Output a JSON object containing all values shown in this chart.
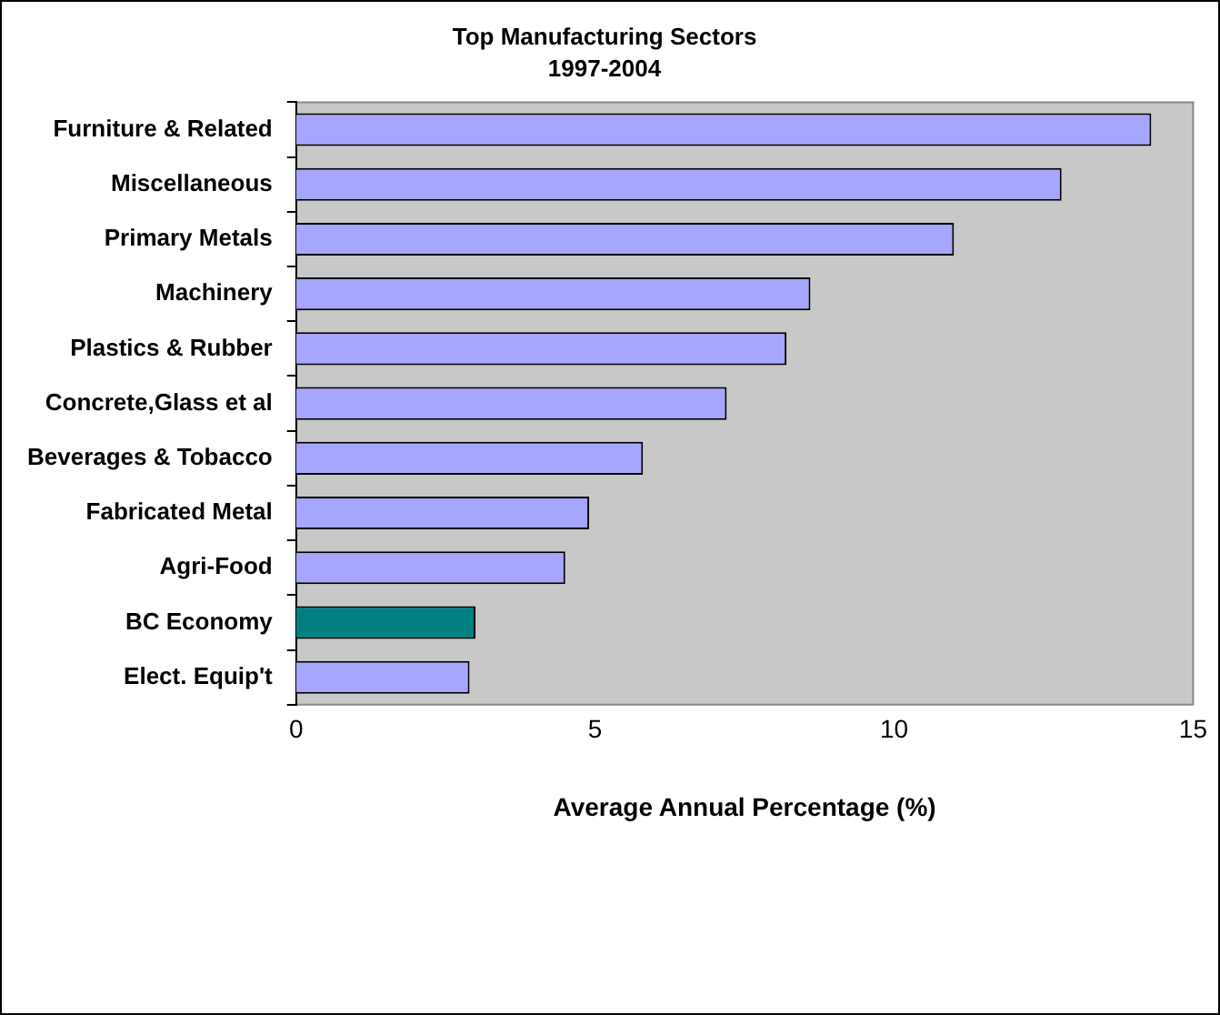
{
  "chart_data": {
    "type": "bar",
    "orientation": "horizontal",
    "title": "Top Manufacturing Sectors",
    "subtitle": "1997-2004",
    "xlabel": "Average Annual Percentage (%)",
    "categories": [
      "Furniture & Related",
      "Miscellaneous",
      "Primary Metals",
      "Machinery",
      "Plastics & Rubber",
      "Concrete,Glass et al",
      "Beverages & Tobacco",
      "Fabricated Metal",
      "Agri-Food",
      "BC Economy",
      "Elect. Equip't"
    ],
    "values": [
      14.3,
      12.8,
      11.0,
      8.6,
      8.2,
      7.2,
      5.8,
      4.9,
      4.5,
      3.0,
      2.9
    ],
    "colors": [
      "#a6a6ff",
      "#a6a6ff",
      "#a6a6ff",
      "#a6a6ff",
      "#a6a6ff",
      "#a6a6ff",
      "#a6a6ff",
      "#a6a6ff",
      "#a6a6ff",
      "#008080",
      "#a6a6ff"
    ],
    "xlim": [
      0,
      15
    ],
    "xticks": [
      0,
      5,
      10,
      15
    ],
    "grid": false,
    "legend": false
  }
}
